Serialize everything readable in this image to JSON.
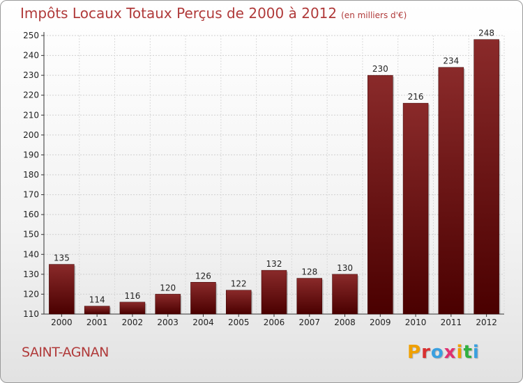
{
  "title": "Impôts Locaux Totaux Perçus de 2000 à 2012",
  "subtitle": "(en milliers d'€)",
  "city": "SAINT-AGNAN",
  "logo": {
    "text": "Proxiti",
    "colors": [
      "#f0a000",
      "#d83030",
      "#3aa0e0",
      "#e03070",
      "#f0a000",
      "#30b040",
      "#3aa0e0"
    ]
  },
  "chart_data": {
    "type": "bar",
    "categories": [
      "2000",
      "2001",
      "2002",
      "2003",
      "2004",
      "2005",
      "2006",
      "2007",
      "2008",
      "2009",
      "2010",
      "2011",
      "2012"
    ],
    "values": [
      135,
      114,
      116,
      120,
      126,
      122,
      132,
      128,
      130,
      230,
      216,
      234,
      248
    ],
    "ylim": [
      110,
      250
    ],
    "yticks": [
      110,
      120,
      130,
      140,
      150,
      160,
      170,
      180,
      190,
      200,
      210,
      220,
      230,
      240,
      250
    ],
    "grid": true,
    "bar_color_top": "#8a2a2a",
    "bar_color_bottom": "#4a0000",
    "xlabel": "",
    "ylabel": ""
  }
}
